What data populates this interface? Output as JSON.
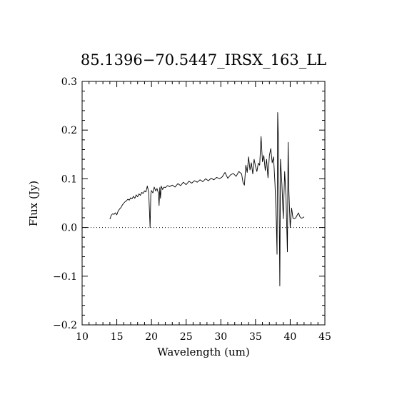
{
  "chart_data": {
    "type": "line",
    "title": "85.1396−70.5447_IRSX_163_LL",
    "xlabel": "Wavelength (um)",
    "ylabel": "Flux (Jy)",
    "xlim": [
      10,
      45
    ],
    "ylim": [
      -0.2,
      0.3
    ],
    "x_ticks": [
      10,
      15,
      20,
      25,
      30,
      35,
      40,
      45
    ],
    "x_tick_labels": [
      "10",
      "15",
      "20",
      "25",
      "30",
      "35",
      "40",
      "45"
    ],
    "y_ticks": [
      -0.2,
      -0.1,
      0.0,
      0.1,
      0.2,
      0.3
    ],
    "y_tick_labels": [
      "−0.2",
      "−0.1",
      "0.0",
      "0.1",
      "0.2",
      "0.3"
    ],
    "reference_line": {
      "y": 0.0,
      "style": "dotted"
    },
    "grid": false,
    "series": [
      {
        "x": [
          14.0,
          14.2,
          14.4,
          14.6,
          14.8,
          15.0,
          15.2,
          15.4,
          15.6,
          15.8,
          16.0,
          16.2,
          16.4,
          16.6,
          16.8,
          17.0,
          17.2,
          17.4,
          17.6,
          17.8,
          18.0,
          18.2,
          18.4,
          18.6,
          18.8,
          19.0,
          19.2,
          19.4,
          19.6,
          19.8,
          19.9,
          20.0,
          20.2,
          20.4,
          20.6,
          20.8,
          21.0,
          21.1,
          21.2,
          21.3,
          21.4,
          21.6,
          21.8,
          22.0,
          22.3,
          22.6,
          23.0,
          23.4,
          23.8,
          24.2,
          24.6,
          25.0,
          25.4,
          25.8,
          26.2,
          26.6,
          27.0,
          27.4,
          27.8,
          28.2,
          28.6,
          29.0,
          29.4,
          29.8,
          30.2,
          30.6,
          31.0,
          31.4,
          31.8,
          32.2,
          32.6,
          33.0,
          33.2,
          33.4,
          33.6,
          33.8,
          34.0,
          34.2,
          34.4,
          34.6,
          34.8,
          35.0,
          35.2,
          35.4,
          35.6,
          35.8,
          36.0,
          36.2,
          36.4,
          36.6,
          36.8,
          37.0,
          37.2,
          37.4,
          37.6,
          37.8,
          38.0,
          38.1,
          38.2,
          38.3,
          38.4,
          38.5,
          38.6,
          38.8,
          39.0,
          39.2,
          39.4,
          39.6,
          39.7,
          39.8,
          40.0,
          40.2,
          40.4,
          40.6,
          40.8,
          41.0,
          41.2,
          41.4,
          41.6,
          41.8,
          42.0
        ],
        "y": [
          0.017,
          0.025,
          0.028,
          0.027,
          0.03,
          0.026,
          0.034,
          0.038,
          0.041,
          0.046,
          0.05,
          0.053,
          0.055,
          0.058,
          0.056,
          0.061,
          0.059,
          0.064,
          0.06,
          0.067,
          0.063,
          0.069,
          0.066,
          0.072,
          0.07,
          0.075,
          0.073,
          0.085,
          0.072,
          0.0,
          0.068,
          0.076,
          0.071,
          0.083,
          0.075,
          0.08,
          0.07,
          0.045,
          0.082,
          0.06,
          0.085,
          0.078,
          0.083,
          0.082,
          0.086,
          0.084,
          0.087,
          0.083,
          0.09,
          0.086,
          0.093,
          0.088,
          0.095,
          0.091,
          0.096,
          0.093,
          0.098,
          0.094,
          0.1,
          0.096,
          0.101,
          0.098,
          0.103,
          0.1,
          0.104,
          0.113,
          0.101,
          0.108,
          0.111,
          0.105,
          0.115,
          0.11,
          0.092,
          0.087,
          0.128,
          0.113,
          0.145,
          0.118,
          0.133,
          0.11,
          0.14,
          0.125,
          0.115,
          0.132,
          0.128,
          0.187,
          0.135,
          0.148,
          0.117,
          0.14,
          0.102,
          0.148,
          0.162,
          0.133,
          0.145,
          0.09,
          0.011,
          -0.055,
          0.236,
          0.18,
          0.06,
          -0.12,
          0.14,
          0.09,
          0.018,
          0.115,
          0.06,
          -0.05,
          0.175,
          0.08,
          0.0,
          0.04,
          0.019,
          0.018,
          0.02,
          0.025,
          0.03,
          0.022,
          0.019,
          0.02,
          0.022
        ]
      }
    ]
  }
}
